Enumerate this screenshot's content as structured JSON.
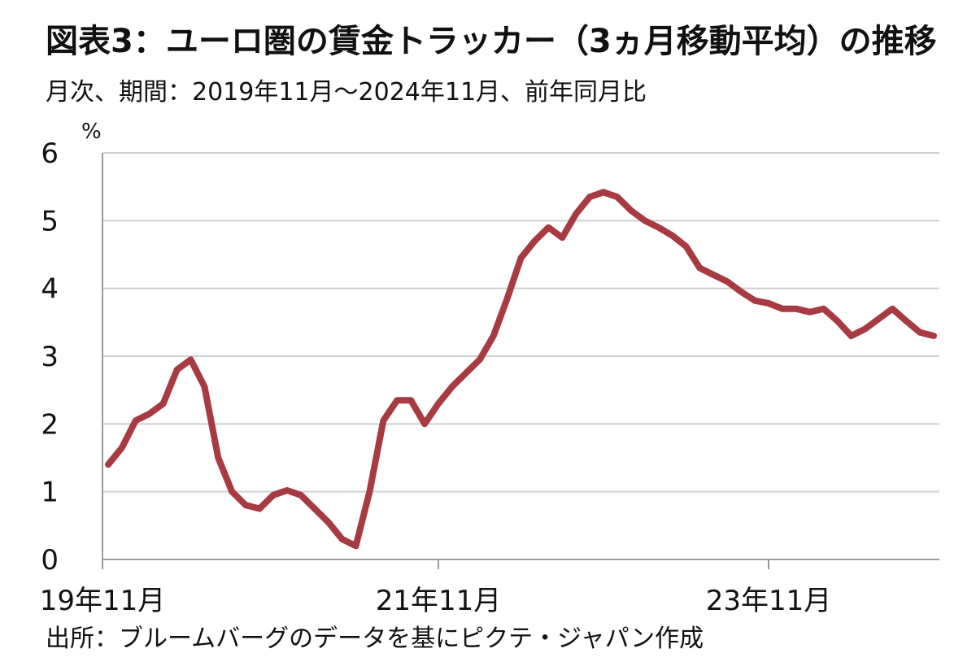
{
  "header": {
    "title": "図表3：ユーロ圏の賃金トラッカー（3ヵ月移動平均）の推移",
    "subtitle": "月次、期間：2019年11月～2024年11月、前年同月比"
  },
  "footer": {
    "source": "出所：ブルームバーグのデータを基にピクテ・ジャパン作成"
  },
  "chart_data": {
    "type": "line",
    "y_unit": "%",
    "ylim": [
      0,
      6
    ],
    "y_ticks": [
      "0",
      "1",
      "2",
      "3",
      "4",
      "5",
      "6"
    ],
    "x_tick_labels": [
      "19年11月",
      "21年11月",
      "23年11月"
    ],
    "x_tick_indices": [
      0,
      24,
      48
    ],
    "grid": true,
    "line_color": "#a83a42",
    "grid_color": "#d0d0d0",
    "series": [
      {
        "values": [
          1.4,
          1.65,
          2.05,
          2.15,
          2.3,
          2.8,
          2.95,
          2.55,
          1.5,
          1.0,
          0.8,
          0.75,
          0.95,
          1.02,
          0.95,
          0.75,
          0.55,
          0.3,
          0.2,
          1.0,
          2.05,
          2.35,
          2.35,
          2.0,
          2.3,
          2.55,
          2.75,
          2.95,
          3.3,
          3.85,
          4.45,
          4.7,
          4.9,
          4.75,
          5.1,
          5.35,
          5.42,
          5.35,
          5.15,
          5.0,
          4.9,
          4.78,
          4.62,
          4.3,
          4.2,
          4.1,
          3.95,
          3.82,
          3.78,
          3.7,
          3.7,
          3.65,
          3.7,
          3.52,
          3.3,
          3.4,
          3.55,
          3.7,
          3.52,
          3.35,
          3.3
        ]
      }
    ]
  }
}
